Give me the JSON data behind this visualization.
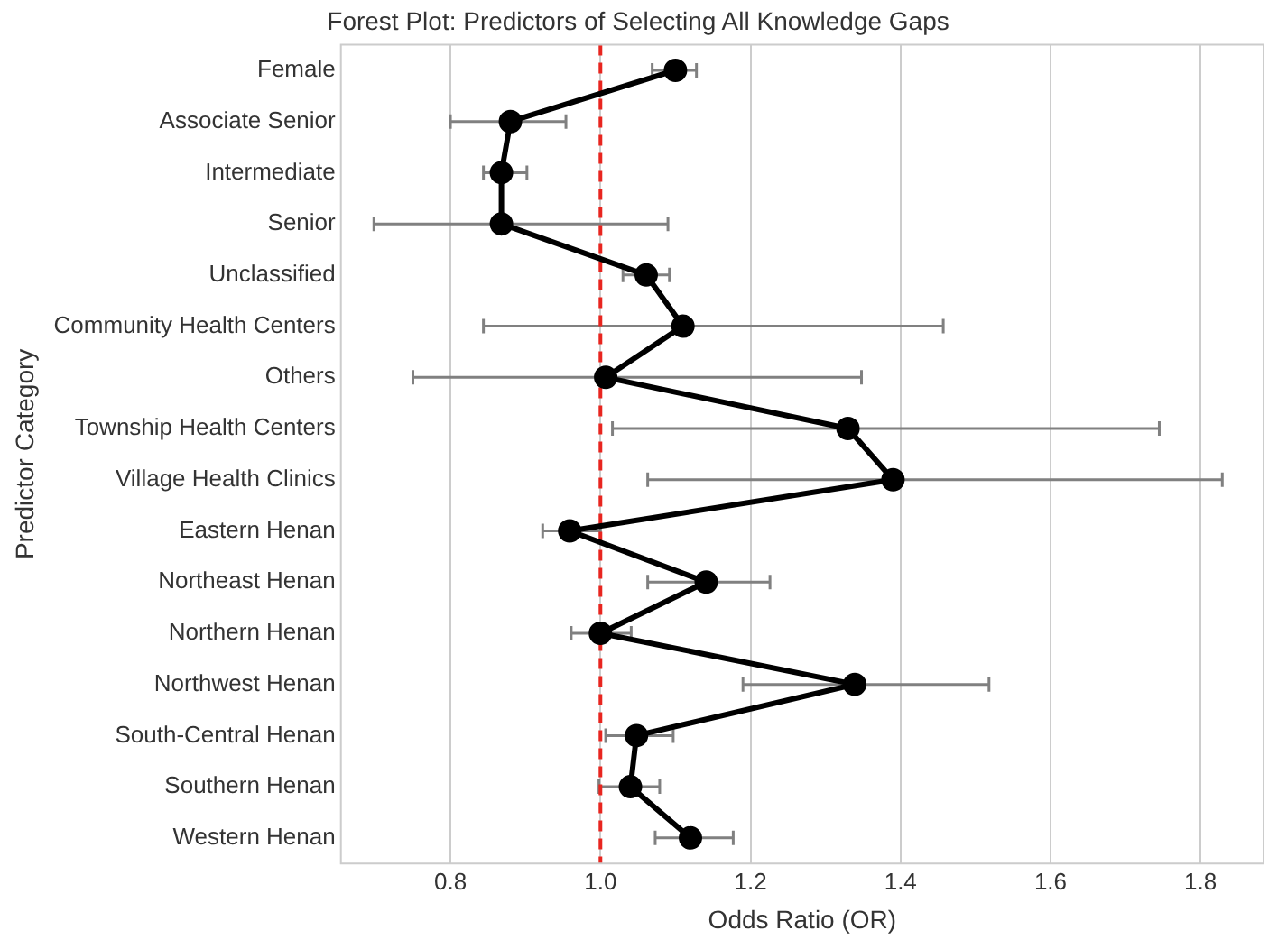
{
  "chart_data": {
    "type": "line",
    "orientation": "horizontal",
    "title": "Forest Plot: Predictors of Selecting All Knowledge Gaps",
    "xlabel": "Odds Ratio (OR)",
    "ylabel": "Predictor Category",
    "categories": [
      "Female",
      "Associate Senior",
      "Intermediate",
      "Senior",
      "Unclassified",
      "Community Health Centers",
      "Others",
      "Township Health Centers",
      "Village Health Clinics",
      "Eastern Henan",
      "Northeast Henan",
      "Northern Henan",
      "Northwest Henan",
      "South-Central Henan",
      "Southern Henan",
      "Western Henan"
    ],
    "series": [
      {
        "color": "#000000",
        "values": [
          1.1,
          0.88,
          0.868,
          0.868,
          1.061,
          1.11,
          1.007,
          1.33,
          1.39,
          0.959,
          1.141,
          1.0,
          1.339,
          1.048,
          1.04,
          1.12
        ],
        "errors": [
          [
            1.069,
            1.128
          ],
          [
            0.8,
            0.954
          ],
          [
            0.844,
            0.902
          ],
          [
            0.698,
            1.09
          ],
          [
            1.03,
            1.092
          ],
          [
            0.844,
            1.457
          ],
          [
            0.75,
            1.348
          ],
          [
            1.016,
            1.745
          ],
          [
            1.063,
            1.829
          ],
          [
            0.923,
            1.0
          ],
          [
            1.063,
            1.226
          ],
          [
            0.961,
            1.041
          ],
          [
            1.19,
            1.518
          ],
          [
            1.007,
            1.097
          ],
          [
            0.998,
            1.079
          ],
          [
            1.073,
            1.177
          ]
        ]
      }
    ],
    "xlim": [
      0.654,
      1.884
    ],
    "xticks": [
      {
        "value": 0.8,
        "label": "0.8"
      },
      {
        "value": 1.0,
        "label": "1.0"
      },
      {
        "value": 1.2,
        "label": "1.2"
      },
      {
        "value": 1.4,
        "label": "1.4"
      },
      {
        "value": 1.6,
        "label": "1.6"
      },
      {
        "value": 1.8,
        "label": "1.8"
      }
    ],
    "ref_lines": [
      {
        "axis": "x",
        "value": 1.0,
        "color": "#e8251f",
        "line_style": "dashed"
      }
    ],
    "grid": "x",
    "legend": false,
    "marker": "circle",
    "line_style": "solid"
  }
}
